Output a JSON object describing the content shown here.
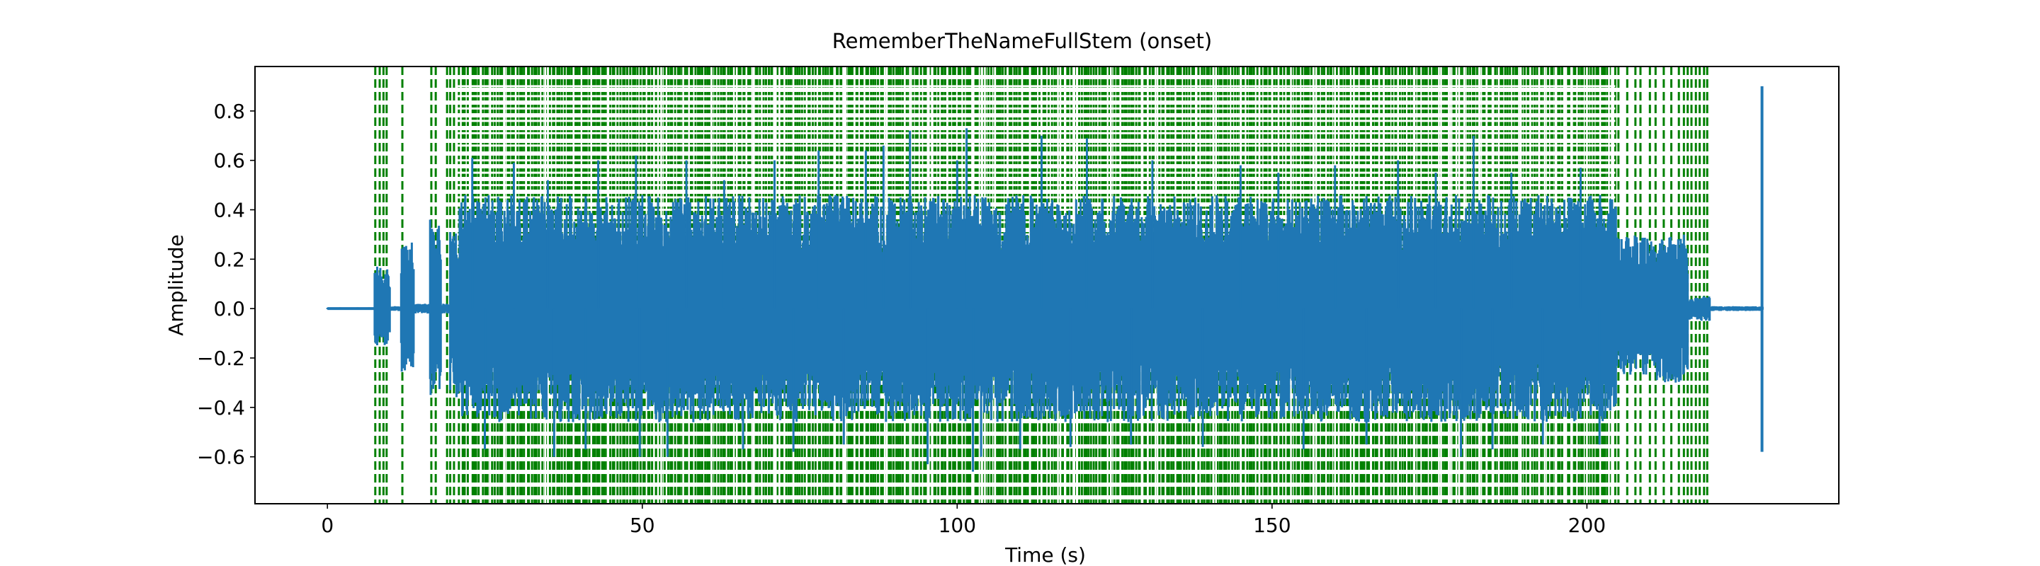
{
  "chart_data": {
    "type": "line",
    "title": "RememberTheNameFullStem (onset)",
    "xlabel": "Time (s)",
    "ylabel": "Amplitude",
    "xlim": [
      -11.5,
      240
    ],
    "ylim": [
      -0.79,
      0.98
    ],
    "x_ticks": [
      0,
      50,
      100,
      150,
      200
    ],
    "x_tick_labels": [
      "0",
      "50",
      "100",
      "150",
      "200"
    ],
    "y_ticks": [
      -0.6,
      -0.4,
      -0.2,
      0.0,
      0.2,
      0.4,
      0.6,
      0.8
    ],
    "y_tick_labels": [
      "−0.6",
      "−0.4",
      "−0.2",
      "0.0",
      "0.2",
      "0.4",
      "0.6",
      "0.8"
    ],
    "grid": false,
    "legend": "none",
    "waveform": {
      "color": "#1f77b4",
      "duration_s": 228.2,
      "envelope_profile": [
        {
          "start": 0,
          "end": 7.4,
          "pos": 0.005,
          "neg": -0.005
        },
        {
          "start": 7.4,
          "end": 9.9,
          "pos": 0.17,
          "neg": -0.15
        },
        {
          "start": 9.9,
          "end": 11.6,
          "pos": 0.01,
          "neg": -0.01
        },
        {
          "start": 11.6,
          "end": 13.7,
          "pos": 0.27,
          "neg": -0.26
        },
        {
          "start": 13.7,
          "end": 16.2,
          "pos": 0.02,
          "neg": -0.02
        },
        {
          "start": 16.2,
          "end": 18.0,
          "pos": 0.37,
          "neg": -0.35
        },
        {
          "start": 18.0,
          "end": 19.5,
          "pos": 0.02,
          "neg": -0.02
        },
        {
          "start": 19.5,
          "end": 21.0,
          "pos": 0.33,
          "neg": -0.36
        },
        {
          "start": 21.0,
          "end": 204.6,
          "pos": 0.46,
          "neg": -0.46
        },
        {
          "start": 204.6,
          "end": 210.5,
          "pos": 0.3,
          "neg": -0.27
        },
        {
          "start": 210.5,
          "end": 216.0,
          "pos": 0.3,
          "neg": -0.3
        },
        {
          "start": 216.0,
          "end": 219.5,
          "pos": 0.05,
          "neg": -0.05
        },
        {
          "start": 219.5,
          "end": 227.9,
          "pos": 0.01,
          "neg": -0.01
        }
      ],
      "peaks": [
        {
          "t": 23.0,
          "v": 0.61
        },
        {
          "t": 25.0,
          "v": -0.57
        },
        {
          "t": 29.6,
          "v": 0.59
        },
        {
          "t": 35.0,
          "v": 0.52
        },
        {
          "t": 36.0,
          "v": -0.6
        },
        {
          "t": 41.0,
          "v": -0.57
        },
        {
          "t": 43.0,
          "v": 0.6
        },
        {
          "t": 49.0,
          "v": 0.62
        },
        {
          "t": 49.6,
          "v": -0.6
        },
        {
          "t": 54.0,
          "v": -0.6
        },
        {
          "t": 57.0,
          "v": 0.6
        },
        {
          "t": 63.0,
          "v": 0.52
        },
        {
          "t": 66.0,
          "v": -0.57
        },
        {
          "t": 71.0,
          "v": 0.6
        },
        {
          "t": 74.0,
          "v": -0.58
        },
        {
          "t": 78.0,
          "v": 0.64
        },
        {
          "t": 82.0,
          "v": -0.55
        },
        {
          "t": 85.5,
          "v": 0.64
        },
        {
          "t": 88.3,
          "v": 0.66
        },
        {
          "t": 92.5,
          "v": 0.72
        },
        {
          "t": 95.3,
          "v": -0.63
        },
        {
          "t": 100.0,
          "v": 0.6
        },
        {
          "t": 101.5,
          "v": 0.73
        },
        {
          "t": 102.5,
          "v": -0.66
        },
        {
          "t": 103.8,
          "v": -0.6
        },
        {
          "t": 110.0,
          "v": -0.57
        },
        {
          "t": 113.4,
          "v": 0.7
        },
        {
          "t": 118.0,
          "v": -0.56
        },
        {
          "t": 120.6,
          "v": 0.69
        },
        {
          "t": 127.6,
          "v": -0.55
        },
        {
          "t": 131.0,
          "v": 0.6
        },
        {
          "t": 139.0,
          "v": -0.56
        },
        {
          "t": 145.0,
          "v": 0.58
        },
        {
          "t": 151.0,
          "v": 0.55
        },
        {
          "t": 155.0,
          "v": -0.57
        },
        {
          "t": 160.0,
          "v": 0.58
        },
        {
          "t": 165.0,
          "v": -0.55
        },
        {
          "t": 170.0,
          "v": 0.6
        },
        {
          "t": 176.0,
          "v": 0.55
        },
        {
          "t": 180.0,
          "v": -0.6
        },
        {
          "t": 182.0,
          "v": 0.7
        },
        {
          "t": 185.0,
          "v": -0.57
        },
        {
          "t": 188.0,
          "v": 0.55
        },
        {
          "t": 193.0,
          "v": -0.55
        },
        {
          "t": 199.0,
          "v": 0.57
        },
        {
          "t": 202.0,
          "v": -0.55
        }
      ],
      "final_spike": {
        "t": 227.8,
        "max": 0.9,
        "min": -0.58
      }
    },
    "onset_lines": {
      "color": "#008000",
      "style": "dashed",
      "dense_region": [
        20.8,
        204.0
      ],
      "dense_count": 460,
      "times": [
        7.6,
        8.3,
        8.9,
        9.4,
        11.9,
        16.5,
        17.2,
        19.0,
        19.5,
        20.1,
        204.5,
        205.0,
        206.4,
        207.7,
        208.5,
        210.0,
        210.9,
        212.2,
        213.4,
        214.6,
        215.4,
        216.0,
        216.6,
        217.3,
        217.9,
        218.6,
        219.1
      ]
    },
    "gap_columns": [
      22.6,
      25.8,
      28.1,
      34.6,
      35.0,
      44.5,
      52.5,
      53.0,
      56.5,
      61.0,
      65.0,
      67.7,
      71.2,
      74.0,
      80.6,
      81.9,
      82.3,
      88.5,
      92.5,
      95.5,
      102.6,
      103.9,
      104.4,
      106.0,
      108.0,
      110.3,
      113.4,
      116.0,
      118.6,
      119.0,
      124.4,
      129.3,
      131.5,
      138.0,
      140.7,
      141.1,
      145.0,
      148.0,
      150.0,
      153.0,
      157.0,
      160.0,
      163.0,
      167.0,
      170.0,
      172.6,
      176.5,
      178.3,
      179.7,
      180.6,
      183.0,
      185.0,
      186.0,
      189.5,
      191.0,
      193.3,
      195.0,
      196.7,
      197.5,
      200.0,
      202.1,
      203.5
    ],
    "gap_rows": [
      0.9,
      0.86,
      0.81,
      0.76,
      0.71,
      0.66,
      0.6,
      0.55,
      0.5,
      0.45,
      0.4,
      0.35,
      0.3,
      0.25,
      0.2,
      0.15,
      0.1,
      0.05,
      -0.05,
      -0.1,
      -0.15,
      -0.2,
      -0.25,
      -0.3,
      -0.36,
      -0.41,
      -0.46,
      -0.51,
      -0.56,
      -0.61,
      -0.66,
      -0.71,
      -0.76
    ]
  }
}
